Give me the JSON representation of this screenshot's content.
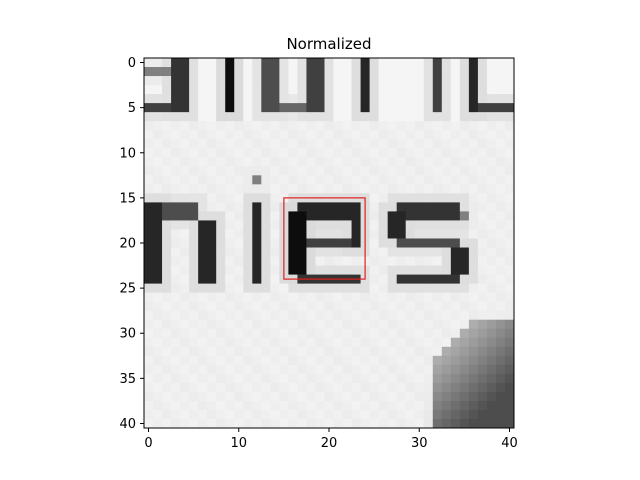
{
  "chart_data": {
    "type": "heatmap",
    "title": "Normalized",
    "xlabel": "",
    "ylabel": "",
    "grid": false,
    "legend": "none",
    "image_size": [
      41,
      41
    ],
    "colormap": "gray",
    "x_ticks": [
      0,
      10,
      20,
      30,
      40
    ],
    "y_ticks": [
      0,
      5,
      10,
      15,
      20,
      25,
      30,
      35,
      40
    ],
    "xlim": [
      -0.5,
      40.5
    ],
    "ylim": [
      40.5,
      -0.5
    ],
    "bounding_box": {
      "x_min": 15,
      "x_max": 24,
      "y_min": 15,
      "y_max": 24,
      "color": "#e02020"
    }
  }
}
